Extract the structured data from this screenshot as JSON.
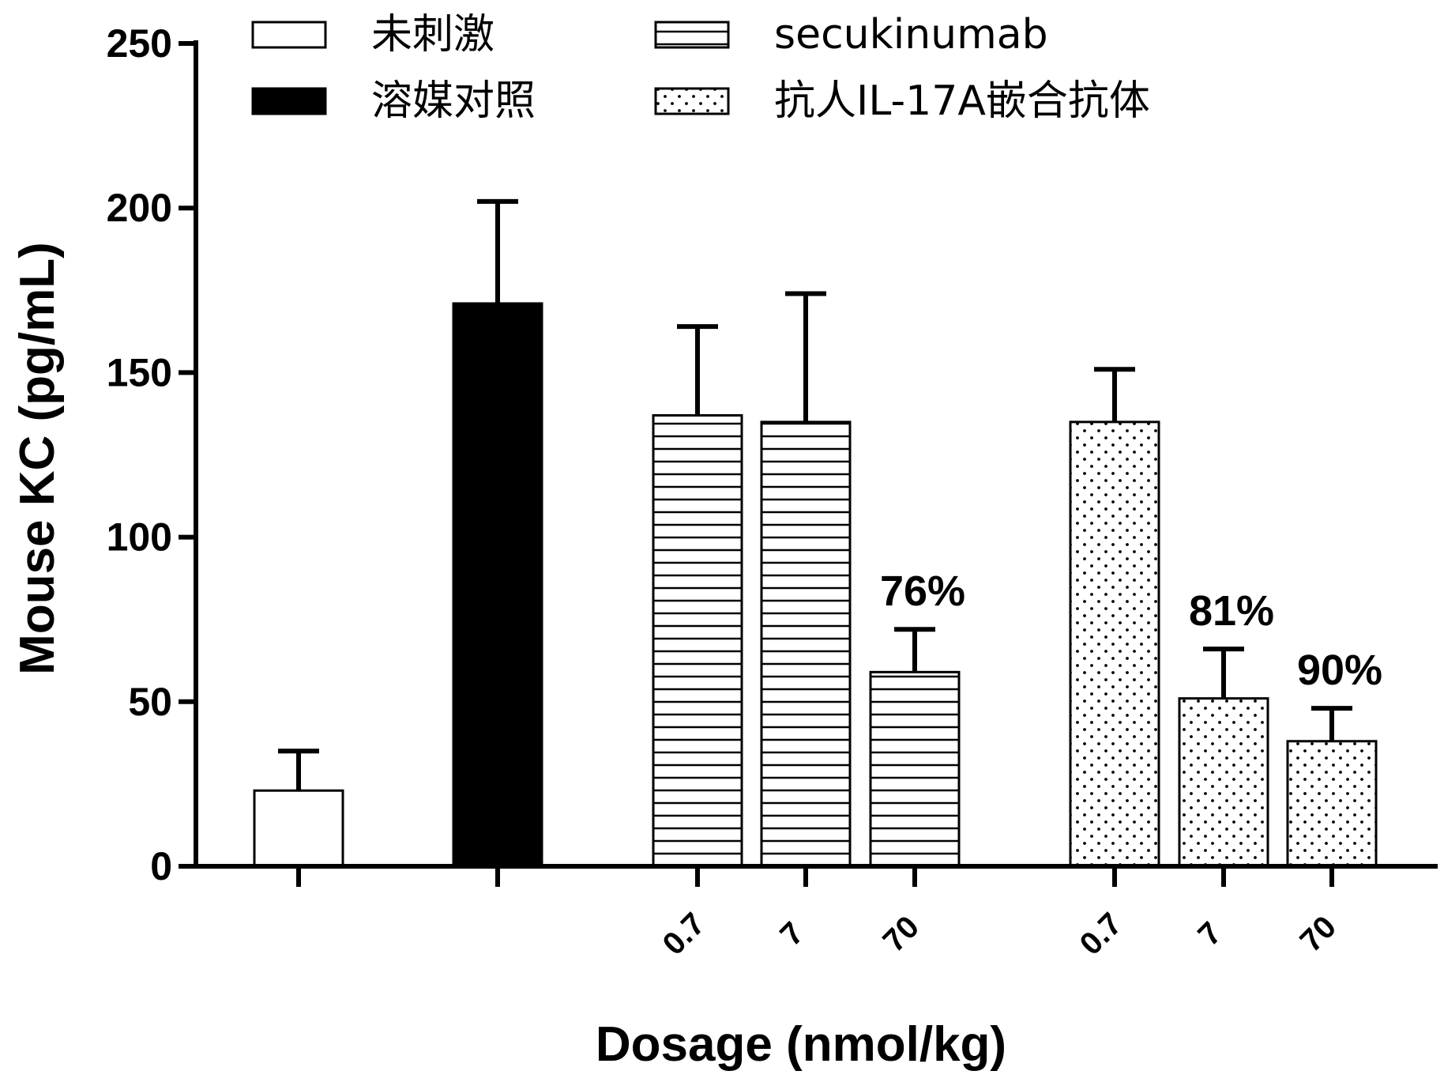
{
  "chart_data": {
    "type": "bar",
    "ylabel": "Mouse KC (pg/mL)",
    "xlabel": "Dosage (nmol/kg)",
    "ylim": [
      0,
      250
    ],
    "yticks": [
      "0",
      "50",
      "100",
      "150",
      "200",
      "250"
    ],
    "legend": {
      "placement": "top",
      "entries": [
        {
          "label": "未刺激",
          "pattern": "open"
        },
        {
          "label": "secukinumab",
          "pattern": "horizontal-lines"
        },
        {
          "label": "溶媒对照",
          "pattern": "solid"
        },
        {
          "label": "抗人IL-17A嵌合抗体",
          "pattern": "dots"
        }
      ]
    },
    "bars": [
      {
        "group": "未刺激",
        "dose": "",
        "value": 23,
        "error": 12
      },
      {
        "group": "溶媒对照",
        "dose": "",
        "value": 171,
        "error": 31
      },
      {
        "group": "secukinumab",
        "dose": "0.7",
        "value": 137,
        "error": 27
      },
      {
        "group": "secukinumab",
        "dose": "7",
        "value": 135,
        "error": 39
      },
      {
        "group": "secukinumab",
        "dose": "70",
        "value": 59,
        "error": 13,
        "annotation": "76%"
      },
      {
        "group": "抗人IL-17A嵌合抗体",
        "dose": "0.7",
        "value": 135,
        "error": 16
      },
      {
        "group": "抗人IL-17A嵌合抗体",
        "dose": "7",
        "value": 51,
        "error": 15,
        "annotation": "81%"
      },
      {
        "group": "抗人IL-17A嵌合抗体",
        "dose": "70",
        "value": 38,
        "error": 10,
        "annotation": "90%"
      }
    ]
  },
  "colors": {
    "ink": "#000000",
    "background": "#ffffff"
  }
}
